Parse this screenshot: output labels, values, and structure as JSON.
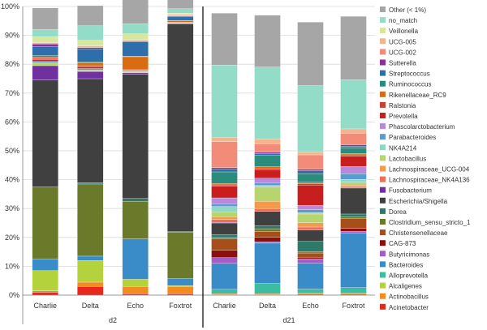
{
  "chart_data": {
    "type": "bar",
    "stacked": true,
    "ylim": [
      0,
      100
    ],
    "y_ticks": [
      "0%",
      "10%",
      "20%",
      "30%",
      "40%",
      "50%",
      "60%",
      "70%",
      "80%",
      "90%",
      "100%"
    ],
    "groups": [
      {
        "label": "d2",
        "categories": [
          "Charlie",
          "Delta",
          "Echo",
          "Foxtrot"
        ]
      },
      {
        "label": "d21",
        "categories": [
          "Charlie",
          "Delta",
          "Echo",
          "Foxtrot"
        ]
      }
    ],
    "legend": [
      {
        "name": "Other (< 1%)",
        "color": "#a6a6a6"
      },
      {
        "name": "no_match",
        "color": "#92dcc8"
      },
      {
        "name": "Veillonella",
        "color": "#d8e6a0"
      },
      {
        "name": "UCG-005",
        "color": "#f5b48c"
      },
      {
        "name": "UCG-002",
        "color": "#f28b78"
      },
      {
        "name": "Sutterella",
        "color": "#8b2d9c"
      },
      {
        "name": "Streptococcus",
        "color": "#2e6eaa"
      },
      {
        "name": "Ruminococcus",
        "color": "#2a8c7c"
      },
      {
        "name": "Rikenellaceae_RC9",
        "color": "#d96b10"
      },
      {
        "name": "Ralstonia",
        "color": "#c94030"
      },
      {
        "name": "Prevotella",
        "color": "#c81e1e"
      },
      {
        "name": "Phascolarctobacterium",
        "color": "#b988d8"
      },
      {
        "name": "Parabacteroides",
        "color": "#5a9bd0"
      },
      {
        "name": "NK4A214",
        "color": "#8ed8c4"
      },
      {
        "name": "Lactobacillus",
        "color": "#b8d46e"
      },
      {
        "name": "Lachnospiraceae_UCG-004",
        "color": "#f59a4a"
      },
      {
        "name": "Lachnospiraceae_NK4A136",
        "color": "#ee6e58"
      },
      {
        "name": "Fusobacterium",
        "color": "#7030a0"
      },
      {
        "name": "Escherichia/Shigella",
        "color": "#404040"
      },
      {
        "name": "Dorea",
        "color": "#2d7a6a"
      },
      {
        "name": "Clostridium_sensu_stricto_1",
        "color": "#6b7a2a"
      },
      {
        "name": "Christensenellaceae",
        "color": "#a84e1a"
      },
      {
        "name": "CAG-873",
        "color": "#8a1010"
      },
      {
        "name": "Butyricimonas",
        "color": "#a45cc8"
      },
      {
        "name": "Bacteroides",
        "color": "#3a8cc8"
      },
      {
        "name": "Alloprevotella",
        "color": "#3cbca0"
      },
      {
        "name": "Alcaligenes",
        "color": "#b4d23c"
      },
      {
        "name": "Actinobacillus",
        "color": "#f28c1e"
      },
      {
        "name": "Acinetobacter",
        "color": "#e6281e"
      }
    ],
    "series": [
      {
        "name": "Acinetobacter",
        "values": [
          1,
          3,
          0.5,
          0.5,
          0.2,
          0.2,
          0.3,
          0.3
        ]
      },
      {
        "name": "Actinobacillus",
        "values": [
          0.5,
          1.5,
          2.5,
          2.5,
          0.3,
          0.3,
          0.3,
          0.3
        ]
      },
      {
        "name": "Alcaligenes",
        "values": [
          7,
          7.5,
          2.5,
          0.3,
          0,
          0,
          0,
          0
        ]
      },
      {
        "name": "Alloprevotella",
        "values": [
          0,
          0,
          0,
          0,
          1.5,
          3.5,
          1.5,
          2
        ]
      },
      {
        "name": "Bacteroides",
        "values": [
          4,
          1.5,
          14,
          2.5,
          9,
          14,
          9,
          19
        ]
      },
      {
        "name": "Butyricimonas",
        "values": [
          0,
          0,
          0,
          0,
          2,
          0.5,
          1.5,
          0.5
        ]
      },
      {
        "name": "CAG-873",
        "values": [
          0,
          0,
          0,
          0,
          2.5,
          1.5,
          0.5,
          1
        ]
      },
      {
        "name": "Christensenellaceae",
        "values": [
          0,
          0,
          0,
          0,
          4,
          2,
          1.5,
          3.5
        ]
      },
      {
        "name": "Clostridium_sensu_stricto_1",
        "values": [
          25,
          25,
          13,
          16,
          0.5,
          1,
          0.5,
          0.5
        ]
      },
      {
        "name": "Dorea",
        "values": [
          0,
          0.5,
          1,
          0.2,
          1,
          1,
          3.5,
          1
        ]
      },
      {
        "name": "Escherichia/Shigella",
        "values": [
          37,
          36,
          43,
          72,
          4,
          5,
          4,
          9
        ]
      },
      {
        "name": "Fusobacterium",
        "values": [
          5,
          2.5,
          0.5,
          0,
          0.2,
          0,
          0,
          0
        ]
      },
      {
        "name": "Lachnospiraceae_NK4A136",
        "values": [
          0,
          0,
          0,
          0,
          1,
          1,
          1,
          0.5
        ]
      },
      {
        "name": "Lachnospiraceae_UCG-004",
        "values": [
          0,
          0,
          0,
          0,
          1,
          2.5,
          1.5,
          0.5
        ]
      },
      {
        "name": "Lactobacillus",
        "values": [
          1,
          0.5,
          0.5,
          0.2,
          1.5,
          5,
          3,
          1
        ]
      },
      {
        "name": "NK4A214",
        "values": [
          0,
          0,
          0,
          0,
          2,
          0.5,
          0.5,
          1
        ]
      },
      {
        "name": "Parabacteroides",
        "values": [
          0.5,
          0.5,
          0.2,
          0.1,
          1,
          1,
          1,
          2
        ]
      },
      {
        "name": "Phascolarctobacterium",
        "values": [
          0,
          0,
          0,
          0,
          2,
          1.5,
          1.5,
          2.5
        ]
      },
      {
        "name": "Prevotella",
        "values": [
          0.5,
          0.5,
          0.2,
          0.1,
          4,
          3,
          7,
          3.5
        ]
      },
      {
        "name": "Ralstonia",
        "values": [
          0.5,
          0.5,
          0.2,
          0.1,
          0.5,
          0.5,
          0.5,
          0.5
        ]
      },
      {
        "name": "Rikenellaceae_RC9",
        "values": [
          0.5,
          1,
          4.5,
          0.5,
          0.5,
          0.5,
          0.5,
          0.5
        ]
      },
      {
        "name": "Ruminococcus",
        "values": [
          0.5,
          0.3,
          0.2,
          0.1,
          4,
          4,
          3,
          2
        ]
      },
      {
        "name": "Streptococcus",
        "values": [
          3,
          4.5,
          5,
          1.5,
          1,
          0.5,
          1,
          0.5
        ]
      },
      {
        "name": "Sutterella",
        "values": [
          1,
          0.5,
          0.2,
          0.1,
          0.5,
          0.5,
          0.5,
          0.5
        ]
      },
      {
        "name": "UCG-002",
        "values": [
          0,
          0,
          0,
          0,
          9,
          3,
          5,
          4
        ]
      },
      {
        "name": "UCG-005",
        "values": [
          0.5,
          0.5,
          0.5,
          0.5,
          1.5,
          1.5,
          1,
          1.5
        ]
      },
      {
        "name": "Veillonella",
        "values": [
          2,
          2,
          2,
          0.5,
          0,
          0,
          0,
          0
        ]
      },
      {
        "name": "no_match",
        "values": [
          2.5,
          5,
          3.5,
          1.5,
          25,
          25,
          23,
          17
        ]
      },
      {
        "name": "Other (< 1%)",
        "values": [
          7.5,
          7,
          8.5,
          3.5,
          18,
          18,
          22,
          22
        ]
      }
    ]
  }
}
